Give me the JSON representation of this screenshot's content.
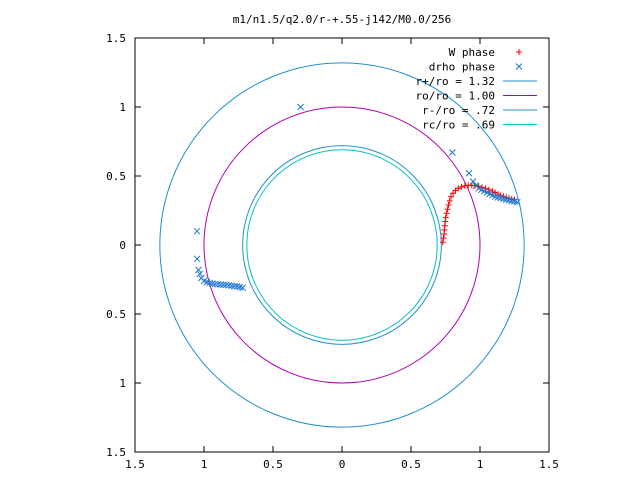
{
  "chart_data": {
    "type": "scatter",
    "title": "m1/n1.5/q2.0/r-+.55-j142/M0.0/256",
    "xlim": [
      -1.5,
      1.5
    ],
    "ylim": [
      -1.5,
      1.5
    ],
    "x_ticks": [
      -1.5,
      -1,
      -0.5,
      0,
      0.5,
      1,
      1.5
    ],
    "y_ticks": [
      -1.5,
      -1,
      -0.5,
      0,
      0.5,
      1,
      1.5
    ],
    "x_tick_labels": [
      "1.5",
      "1",
      "0.5",
      "0",
      "0.5",
      "1",
      "1.5"
    ],
    "y_tick_labels": [
      "1.5",
      "1",
      "0.5",
      "0",
      "0.5",
      "1",
      "1.5"
    ],
    "grid": false,
    "legend_position": "top-right",
    "series": [
      {
        "name": "W phase",
        "kind": "points",
        "marker": "plus",
        "color": "#ff0000",
        "points": [
          [
            0.73,
            0.02
          ],
          [
            0.735,
            0.05
          ],
          [
            0.74,
            0.08
          ],
          [
            0.742,
            0.11
          ],
          [
            0.745,
            0.14
          ],
          [
            0.748,
            0.17
          ],
          [
            0.752,
            0.2
          ],
          [
            0.758,
            0.23
          ],
          [
            0.765,
            0.26
          ],
          [
            0.772,
            0.29
          ],
          [
            0.78,
            0.32
          ],
          [
            0.79,
            0.35
          ],
          [
            0.805,
            0.375
          ],
          [
            0.822,
            0.395
          ],
          [
            0.842,
            0.41
          ],
          [
            0.865,
            0.42
          ],
          [
            0.89,
            0.428
          ],
          [
            0.915,
            0.432
          ],
          [
            0.94,
            0.433
          ],
          [
            0.965,
            0.43
          ],
          [
            0.99,
            0.425
          ],
          [
            1.015,
            0.418
          ],
          [
            1.04,
            0.41
          ],
          [
            1.065,
            0.4
          ],
          [
            1.09,
            0.39
          ],
          [
            1.11,
            0.38
          ],
          [
            1.13,
            0.37
          ],
          [
            1.15,
            0.36
          ],
          [
            1.17,
            0.352
          ],
          [
            1.19,
            0.345
          ],
          [
            1.21,
            0.34
          ],
          [
            1.23,
            0.335
          ],
          [
            1.25,
            0.33
          ]
        ]
      },
      {
        "name": "drho phase",
        "kind": "points",
        "marker": "cross",
        "color": "#1f77d4",
        "points": [
          [
            -1.05,
            0.1
          ],
          [
            -1.05,
            -0.1
          ],
          [
            -1.04,
            -0.18
          ],
          [
            -1.03,
            -0.21
          ],
          [
            -1.02,
            -0.24
          ],
          [
            -1.0,
            -0.26
          ],
          [
            -0.98,
            -0.27
          ],
          [
            -0.96,
            -0.275
          ],
          [
            -0.94,
            -0.28
          ],
          [
            -0.92,
            -0.283
          ],
          [
            -0.9,
            -0.285
          ],
          [
            -0.88,
            -0.287
          ],
          [
            -0.86,
            -0.288
          ],
          [
            -0.84,
            -0.29
          ],
          [
            -0.82,
            -0.292
          ],
          [
            -0.8,
            -0.295
          ],
          [
            -0.78,
            -0.298
          ],
          [
            -0.76,
            -0.3
          ],
          [
            -0.74,
            -0.305
          ],
          [
            -0.72,
            -0.31
          ],
          [
            -0.3,
            1.0
          ],
          [
            0.8,
            0.67
          ],
          [
            0.92,
            0.52
          ],
          [
            0.95,
            0.46
          ],
          [
            0.97,
            0.43
          ],
          [
            0.99,
            0.41
          ],
          [
            1.01,
            0.4
          ],
          [
            1.03,
            0.39
          ],
          [
            1.05,
            0.38
          ],
          [
            1.07,
            0.37
          ],
          [
            1.09,
            0.36
          ],
          [
            1.11,
            0.35
          ],
          [
            1.13,
            0.345
          ],
          [
            1.15,
            0.34
          ],
          [
            1.17,
            0.335
          ],
          [
            1.19,
            0.33
          ],
          [
            1.21,
            0.325
          ],
          [
            1.23,
            0.32
          ],
          [
            1.25,
            0.315
          ],
          [
            1.27,
            0.31
          ]
        ]
      },
      {
        "name": "r+/ro = 1.32",
        "kind": "circle",
        "radius": 1.32,
        "color": "#1f8fcf"
      },
      {
        "name": "ro/ro = 1.00",
        "kind": "circle",
        "radius": 1.0,
        "color": "#b000b0"
      },
      {
        "name": "r-/ro = .72",
        "kind": "circle",
        "radius": 0.72,
        "color": "#1f8fcf"
      },
      {
        "name": "rc/ro = .69",
        "kind": "circle",
        "radius": 0.69,
        "color": "#00c0c0"
      }
    ]
  }
}
